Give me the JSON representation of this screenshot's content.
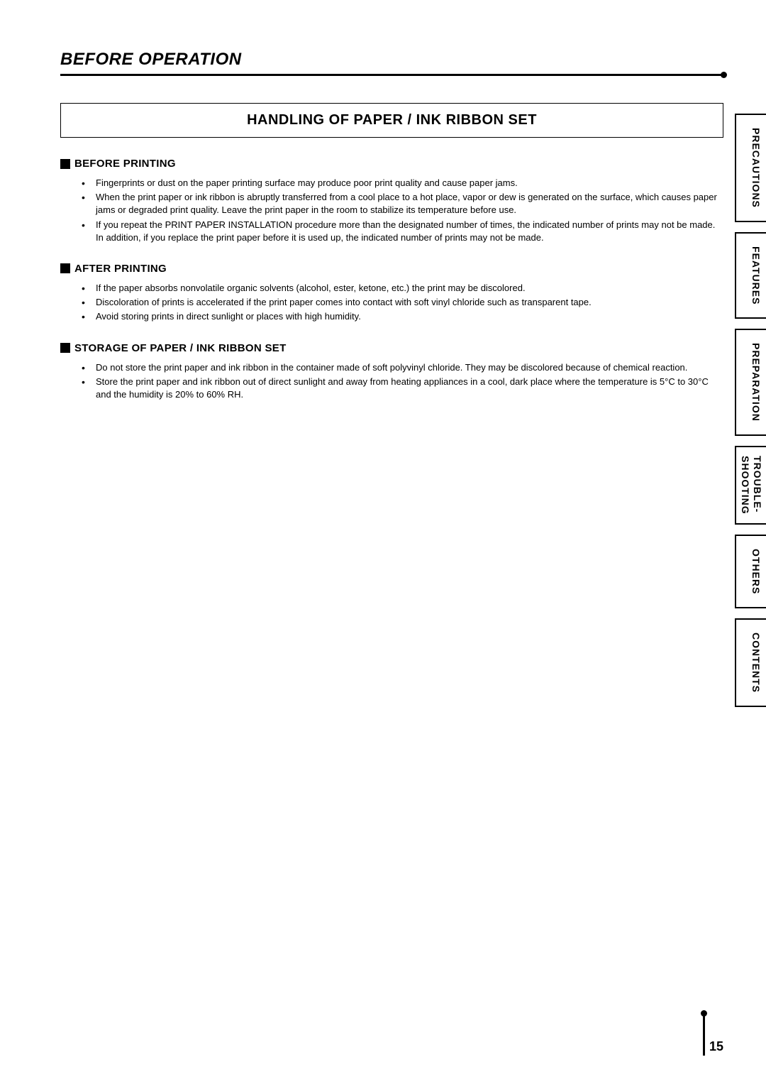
{
  "header": {
    "title": "BEFORE OPERATION"
  },
  "mainHeading": "HANDLING OF PAPER / INK RIBBON SET",
  "sections": [
    {
      "title": "BEFORE PRINTING",
      "items": [
        "Fingerprints or dust on the paper printing surface may produce poor print quality and cause paper jams.",
        "When the print paper or ink ribbon is abruptly transferred from a cool place to a hot place, vapor or dew is generated on the surface, which causes paper jams or degraded print quality. Leave the print paper in the room to stabilize its temperature before use.",
        "If you repeat the PRINT PAPER INSTALLATION procedure more than the designated number of times, the indicated number of prints may not be made. In addition, if you replace the print paper before it is used up, the indicated number of prints may not be made."
      ]
    },
    {
      "title": "AFTER PRINTING",
      "items": [
        "If the paper absorbs nonvolatile organic solvents (alcohol, ester, ketone, etc.) the print may be discolored.",
        "Discoloration of prints is accelerated if the print paper comes into contact with soft vinyl chloride such as transparent tape.",
        "Avoid storing prints in direct sunlight or places with high humidity."
      ]
    },
    {
      "title": "STORAGE OF PAPER / INK RIBBON SET",
      "items": [
        "Do not store the print paper and ink ribbon in the container made of soft polyvinyl chloride. They may be discolored because of chemical reaction.",
        "Store the print paper and ink ribbon out of direct sunlight and away from heating appliances in a cool, dark place where the temperature is 5°C to 30°C and the humidity is 20% to 60% RH."
      ]
    }
  ],
  "sideTabs": {
    "tab1": "PRECAUTIONS",
    "tab2": "FEATURES",
    "tab3": "PREPARATION",
    "tab4a": "TROUBLE-",
    "tab4b": "SHOOTING",
    "tab5": "OTHERS",
    "tab6": "CONTENTS"
  },
  "pageNumber": "15"
}
